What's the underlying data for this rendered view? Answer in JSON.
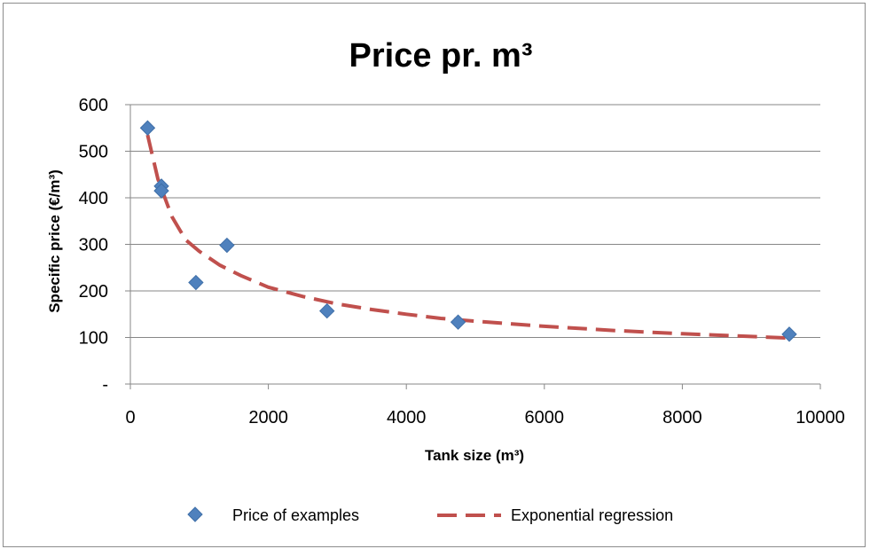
{
  "chart_data": {
    "type": "scatter",
    "title": "Price pr. m³",
    "xlabel": "Tank size (m³)",
    "ylabel": "Specific price (€/m³)",
    "xlim": [
      0,
      10000
    ],
    "ylim": [
      0,
      600
    ],
    "x_ticks": [
      0,
      2000,
      4000,
      6000,
      8000,
      10000
    ],
    "y_ticks": [
      {
        "value": 0,
        "label": "-"
      },
      {
        "value": 100,
        "label": "100"
      },
      {
        "value": 200,
        "label": "200"
      },
      {
        "value": 300,
        "label": "300"
      },
      {
        "value": 400,
        "label": "400"
      },
      {
        "value": 500,
        "label": "500"
      },
      {
        "value": 600,
        "label": "600"
      }
    ],
    "grid": "horizontal",
    "legend_position": "bottom",
    "series": [
      {
        "name": "Price of examples",
        "type": "scatter",
        "marker": "diamond",
        "color": "#4f81bd",
        "points": [
          {
            "x": 250,
            "y": 550
          },
          {
            "x": 450,
            "y": 425
          },
          {
            "x": 450,
            "y": 415
          },
          {
            "x": 950,
            "y": 218
          },
          {
            "x": 1400,
            "y": 298
          },
          {
            "x": 2850,
            "y": 157
          },
          {
            "x": 4750,
            "y": 133
          },
          {
            "x": 9550,
            "y": 107
          }
        ]
      },
      {
        "name": "Exponential regression",
        "type": "line",
        "style": "dashed",
        "color": "#c0504d",
        "points": [
          {
            "x": 250,
            "y": 535
          },
          {
            "x": 400,
            "y": 440
          },
          {
            "x": 600,
            "y": 360
          },
          {
            "x": 800,
            "y": 310
          },
          {
            "x": 1000,
            "y": 285
          },
          {
            "x": 1300,
            "y": 255
          },
          {
            "x": 1600,
            "y": 233
          },
          {
            "x": 2000,
            "y": 208
          },
          {
            "x": 2500,
            "y": 188
          },
          {
            "x": 3000,
            "y": 172
          },
          {
            "x": 3500,
            "y": 160
          },
          {
            "x": 4000,
            "y": 150
          },
          {
            "x": 4500,
            "y": 141
          },
          {
            "x": 5000,
            "y": 135
          },
          {
            "x": 6000,
            "y": 124
          },
          {
            "x": 7000,
            "y": 115
          },
          {
            "x": 8000,
            "y": 108
          },
          {
            "x": 9000,
            "y": 102
          },
          {
            "x": 9500,
            "y": 99
          }
        ]
      }
    ]
  }
}
